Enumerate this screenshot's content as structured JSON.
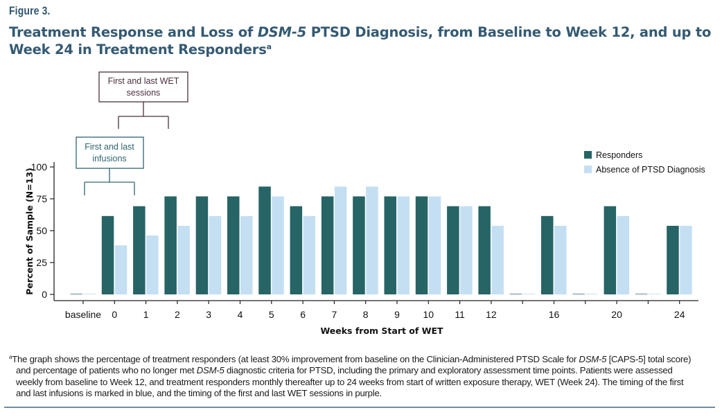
{
  "figure": {
    "label": "Figure 3.",
    "title_part1": "Treatment Response and Loss of ",
    "title_italic": "DSM-5",
    "title_part2": " PTSD Diagnosis, from Baseline to Week 12, and up to Week 24 in Treatment Responders",
    "title_superscript": "a"
  },
  "annotations": {
    "wet_sessions": {
      "line1": "First and last WET",
      "line2": "sessions",
      "color": "#4a2f3f",
      "from_week": "0",
      "to_week": "2"
    },
    "infusions": {
      "line1": "First and last",
      "line2": "infusions",
      "color": "#2e6470",
      "from_week": "baseline",
      "to_week": "1"
    }
  },
  "colors": {
    "responders": "#266466",
    "absence": "#c4dff2",
    "axis": "#222222",
    "title": "#345a73"
  },
  "chart_data": {
    "type": "bar",
    "title": "Treatment Response and Loss of DSM-5 PTSD Diagnosis, from Baseline to Week 12, and up to Week 24 in Treatment Responders",
    "xlabel": "Weeks from Start of WET",
    "ylabel": "Percent of Sample (N=13)",
    "ylim": [
      0,
      100
    ],
    "yticks": [
      0,
      25,
      50,
      75,
      100
    ],
    "grid": false,
    "legend_position": "top-right",
    "categories": [
      "baseline",
      "0",
      "1",
      "2",
      "3",
      "4",
      "5",
      "6",
      "7",
      "8",
      "9",
      "10",
      "11",
      "12",
      "",
      "16",
      "",
      "20",
      "",
      "24"
    ],
    "series": [
      {
        "name": "Responders",
        "values": [
          0,
          61.5,
          69.2,
          76.9,
          76.9,
          76.9,
          84.6,
          69.2,
          76.9,
          76.9,
          76.9,
          76.9,
          69.2,
          69.2,
          0,
          61.5,
          0,
          69.2,
          0,
          53.8
        ]
      },
      {
        "name": "Absence of PTSD Diagnosis",
        "values": [
          0,
          38.5,
          46.2,
          53.8,
          61.5,
          61.5,
          76.9,
          61.5,
          84.6,
          84.6,
          76.9,
          76.9,
          69.2,
          53.8,
          0,
          53.8,
          0,
          61.5,
          0,
          53.8
        ]
      }
    ]
  },
  "footnote": {
    "superscript": "a",
    "line1_a": "The graph shows the percentage of treatment responders (at least 30% improvement from baseline on the Clinician-Administered PTSD Scale for ",
    "line1_italic": "DSM-5",
    "line1_b": " [CAPS-5] total score)",
    "line2_a": "and percentage of patients who no longer met ",
    "line2_italic": "DSM-5",
    "line2_b": " diagnostic criteria for PTSD, including the primary and exploratory assessment time points. Patients were assessed",
    "line3": "weekly from baseline to Week 12, and treatment responders monthly thereafter up to 24 weeks from start of written exposure therapy, WET (Week 24). The timing of the first",
    "line4": "and last infusions is marked in blue, and the timing of the first and last WET sessions in purple."
  }
}
